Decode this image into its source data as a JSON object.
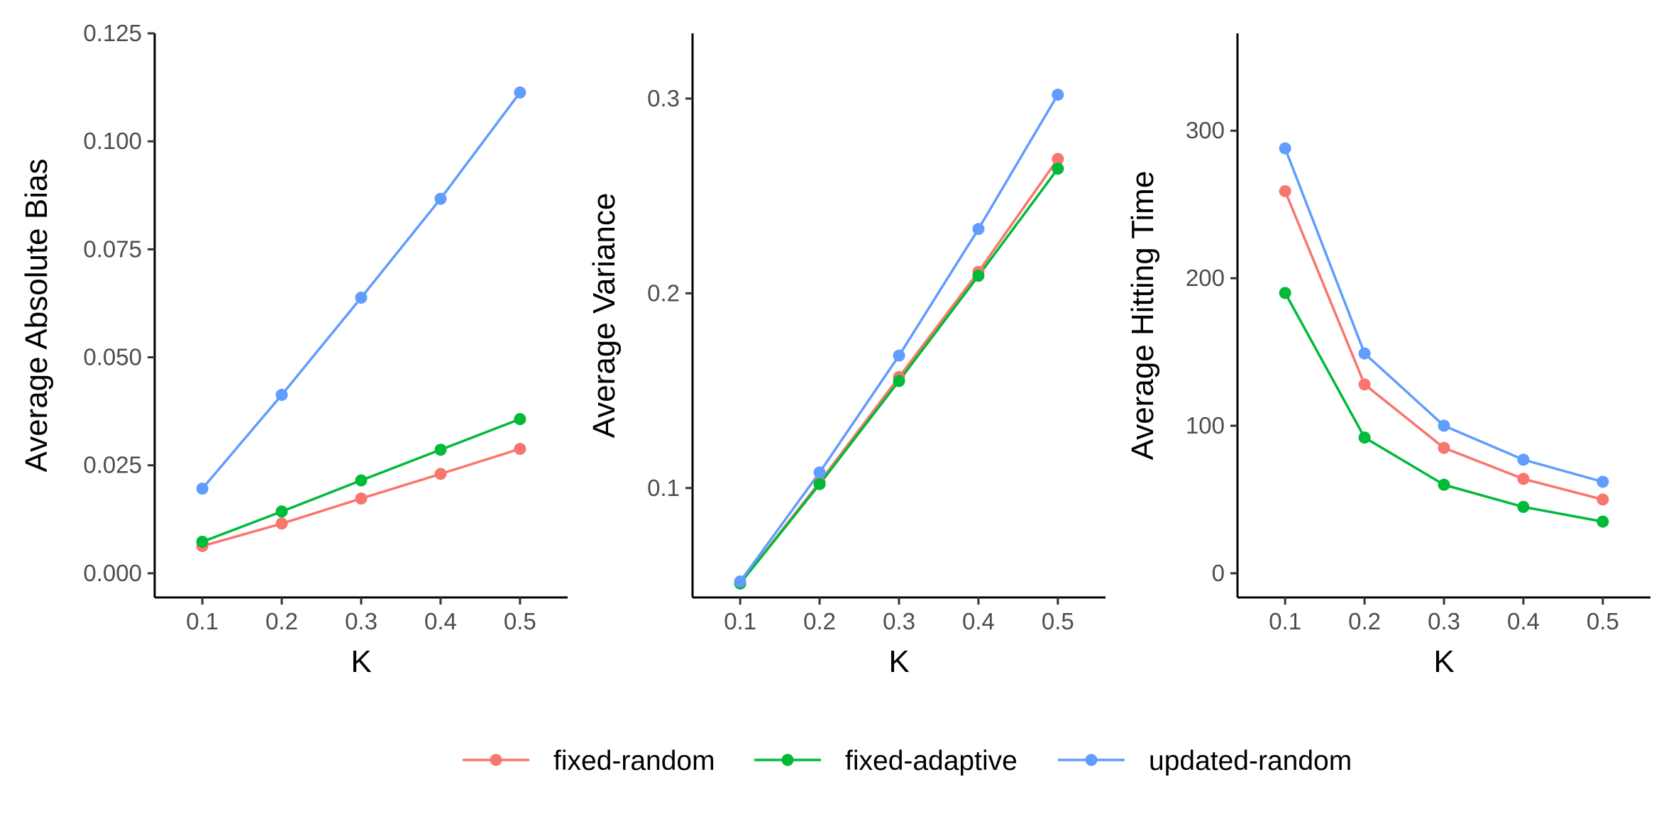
{
  "chart_data": [
    {
      "type": "line",
      "x": [
        0.1,
        0.2,
        0.3,
        0.4,
        0.5
      ],
      "xticks": [
        "0.1",
        "0.2",
        "0.3",
        "0.4",
        "0.5"
      ],
      "xlabel": "K",
      "ylabel": "Average Absolute Bias",
      "xlim": [
        0.04,
        0.56
      ],
      "ylim": [
        -0.0056,
        0.125
      ],
      "yticks": [
        0.0,
        0.025,
        0.05,
        0.075,
        0.1,
        0.125
      ],
      "ytick_labels": [
        "0.000",
        "0.025",
        "0.050",
        "0.075",
        "0.100",
        "0.125"
      ],
      "grid": false,
      "series": [
        {
          "name": "fixed-random",
          "color": "#F8766D",
          "values": [
            0.0063,
            0.0115,
            0.0173,
            0.023,
            0.0288
          ]
        },
        {
          "name": "fixed-adaptive",
          "color": "#00BA38",
          "values": [
            0.0073,
            0.0143,
            0.0215,
            0.0286,
            0.0357
          ]
        },
        {
          "name": "updated-random",
          "color": "#619CFF",
          "values": [
            0.0196,
            0.0413,
            0.0638,
            0.0867,
            0.1113
          ]
        }
      ]
    },
    {
      "type": "line",
      "x": [
        0.1,
        0.2,
        0.3,
        0.4,
        0.5
      ],
      "xticks": [
        "0.1",
        "0.2",
        "0.3",
        "0.4",
        "0.5"
      ],
      "xlabel": "K",
      "ylabel": "Average Variance",
      "xlim": [
        0.04,
        0.56
      ],
      "ylim": [
        0.0438,
        0.3335
      ],
      "yticks": [
        0.1,
        0.2,
        0.3
      ],
      "ytick_labels": [
        "0.1",
        "0.2",
        "0.3"
      ],
      "grid": false,
      "series": [
        {
          "name": "fixed-random",
          "color": "#F8766D",
          "values": [
            0.051,
            0.103,
            0.157,
            0.211,
            0.269
          ]
        },
        {
          "name": "fixed-adaptive",
          "color": "#00BA38",
          "values": [
            0.051,
            0.102,
            0.155,
            0.209,
            0.264
          ]
        },
        {
          "name": "updated-random",
          "color": "#619CFF",
          "values": [
            0.052,
            0.108,
            0.168,
            0.233,
            0.302
          ]
        }
      ]
    },
    {
      "type": "line",
      "x": [
        0.1,
        0.2,
        0.3,
        0.4,
        0.5
      ],
      "xticks": [
        "0.1",
        "0.2",
        "0.3",
        "0.4",
        "0.5"
      ],
      "xlabel": "K",
      "ylabel": "Average Hitting Time",
      "xlim": [
        0.04,
        0.56
      ],
      "ylim": [
        -16.4,
        366
      ],
      "yticks": [
        0,
        100,
        200,
        300
      ],
      "ytick_labels": [
        "0",
        "100",
        "200",
        "300"
      ],
      "grid": false,
      "series": [
        {
          "name": "fixed-random",
          "color": "#F8766D",
          "values": [
            259,
            128,
            85,
            64,
            50
          ]
        },
        {
          "name": "fixed-adaptive",
          "color": "#00BA38",
          "values": [
            190,
            92,
            60,
            45,
            35
          ]
        },
        {
          "name": "updated-random",
          "color": "#619CFF",
          "values": [
            288,
            149,
            100,
            77,
            62
          ]
        }
      ]
    }
  ],
  "legend": {
    "position": "bottom",
    "items": [
      {
        "label": "fixed-random",
        "color": "#F8766D"
      },
      {
        "label": "fixed-adaptive",
        "color": "#00BA38"
      },
      {
        "label": "updated-random",
        "color": "#619CFF"
      }
    ]
  }
}
